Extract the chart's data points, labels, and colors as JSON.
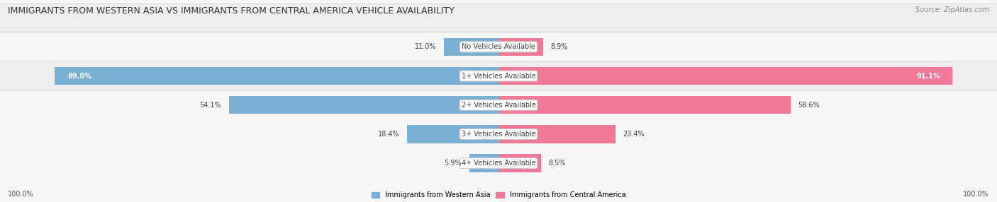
{
  "title": "IMMIGRANTS FROM WESTERN ASIA VS IMMIGRANTS FROM CENTRAL AMERICA VEHICLE AVAILABILITY",
  "source": "Source: ZipAtlas.com",
  "categories": [
    "No Vehicles Available",
    "1+ Vehicles Available",
    "2+ Vehicles Available",
    "3+ Vehicles Available",
    "4+ Vehicles Available"
  ],
  "western_asia": [
    11.0,
    89.0,
    54.1,
    18.4,
    5.9
  ],
  "central_america": [
    8.9,
    91.1,
    58.6,
    23.4,
    8.5
  ],
  "western_asia_color": "#7bafd4",
  "central_america_color": "#f07898",
  "row_colors": [
    "#f7f7f7",
    "#eeeeee",
    "#f7f7f7",
    "#eeeeee",
    "#f7f7f7"
  ],
  "bg_color": "#f2f2f2",
  "max_val": 100.0,
  "bar_height": 0.62,
  "legend_label_1": "Immigrants from Western Asia",
  "legend_label_2": "Immigrants from Central America",
  "bottom_label": "100.0%"
}
